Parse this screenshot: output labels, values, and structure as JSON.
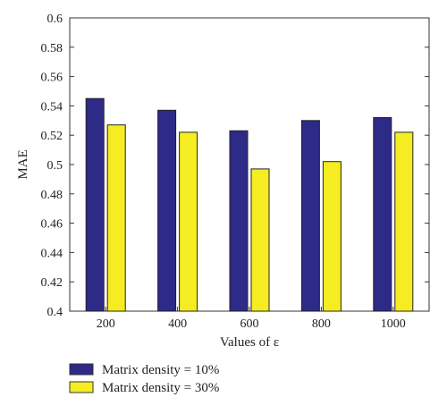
{
  "chart_data": {
    "type": "bar",
    "categories": [
      "200",
      "400",
      "600",
      "800",
      "1000"
    ],
    "series": [
      {
        "name": "Matrix density = 10%",
        "color": "#2e2a87",
        "values": [
          0.545,
          0.537,
          0.523,
          0.53,
          0.532
        ]
      },
      {
        "name": "Matrix density = 30%",
        "color": "#f5ec22",
        "values": [
          0.527,
          0.522,
          0.497,
          0.502,
          0.522
        ]
      }
    ],
    "xlabel": "Values of ε",
    "ylabel": "MAE",
    "ylim": [
      0.4,
      0.6
    ],
    "yticks": [
      "0.4",
      "0.42",
      "0.44",
      "0.46",
      "0.48",
      "0.5",
      "0.52",
      "0.54",
      "0.56",
      "0.58",
      "0.6"
    ],
    "grid": false,
    "legend": "bottom"
  }
}
